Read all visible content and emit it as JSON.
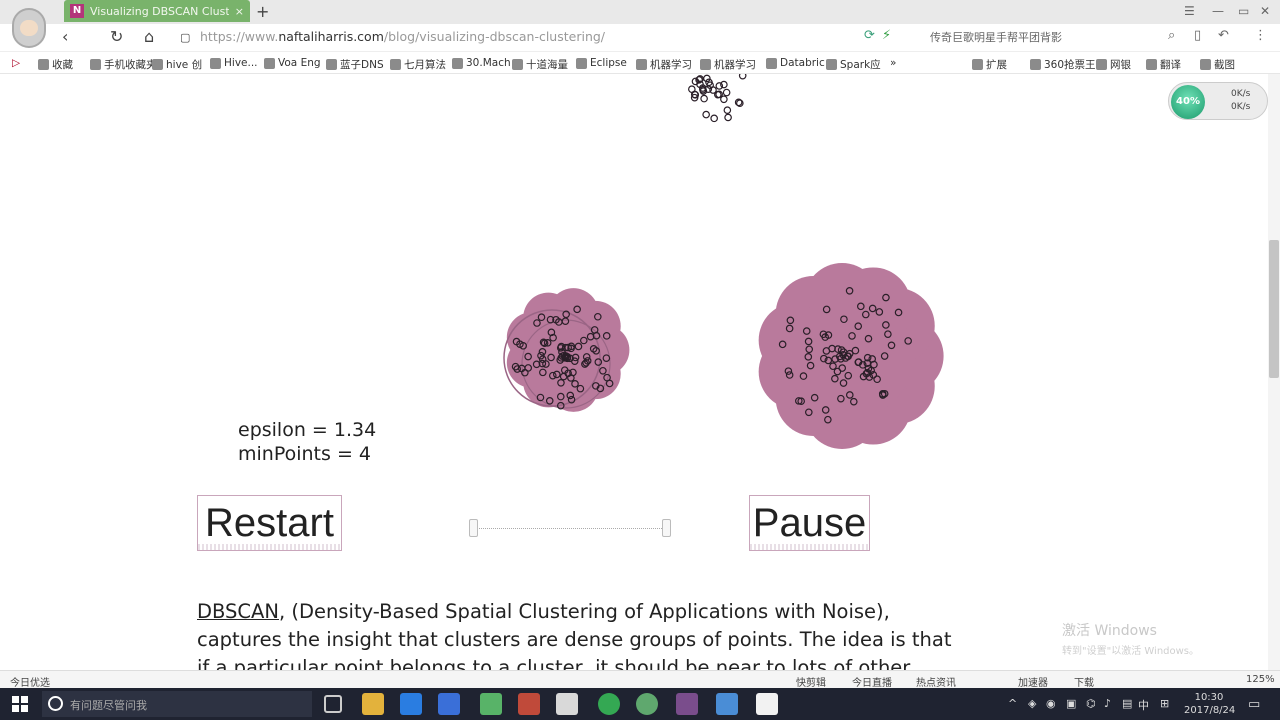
{
  "tab": {
    "title": "Visualizing DBSCAN Clusteri",
    "favicon": "N",
    "close": "×"
  },
  "toolbar": {
    "new_tab": "+",
    "url_prefix": "https://www.",
    "url_domain": "naftaliharris.com",
    "url_path": "/blog/visualizing-dbscan-clustering/",
    "news": "传奇巨歌明星手帮平团背影"
  },
  "bookmarks": [
    "收藏",
    "手机收藏夹",
    "hive 创",
    "Hive...",
    "Voa Eng",
    "蓝子DNS",
    "七月算法",
    "30.Mach",
    "十道海量",
    "Eclipse",
    "机器学习",
    "机器学习",
    "Databric",
    "Spark应",
    "扩展",
    "360抢票王",
    "网银",
    "翻译",
    "截图"
  ],
  "speed": {
    "badge": "40%",
    "up": "0K/s",
    "down": "0K/s"
  },
  "params": {
    "epsilon": "epsilon = 1.34",
    "minpoints": "minPoints = 4"
  },
  "buttons": {
    "restart": "Restart",
    "pause": "Pause"
  },
  "slider": {
    "low": 0.0,
    "high": 1.0
  },
  "article": {
    "link": "DBSCAN",
    "text": ", (Density-Based Spatial Clustering of Applications with Noise), captures the insight that clusters are dense groups of points. The idea is that if a particular point belongs to a cluster, it should be near to lots of other points in that cluster."
  },
  "watermark": {
    "line1": "激活 Windows",
    "line2": "转到\"设置\"以激活 Windows。"
  },
  "statusbar": {
    "left": "今日优选",
    "items": [
      "快剪辑",
      "今日直播",
      "热点资讯",
      "加速器",
      "下载",
      "125%"
    ]
  },
  "taskbar": {
    "search_placeholder": "有问题尽管问我",
    "clock_time": "10:30",
    "clock_date": "2017/8/24",
    "ime": "中"
  },
  "colors": {
    "cluster": "#b97a9c",
    "tab": "#79b36b",
    "taskbar": "#1f2331"
  }
}
